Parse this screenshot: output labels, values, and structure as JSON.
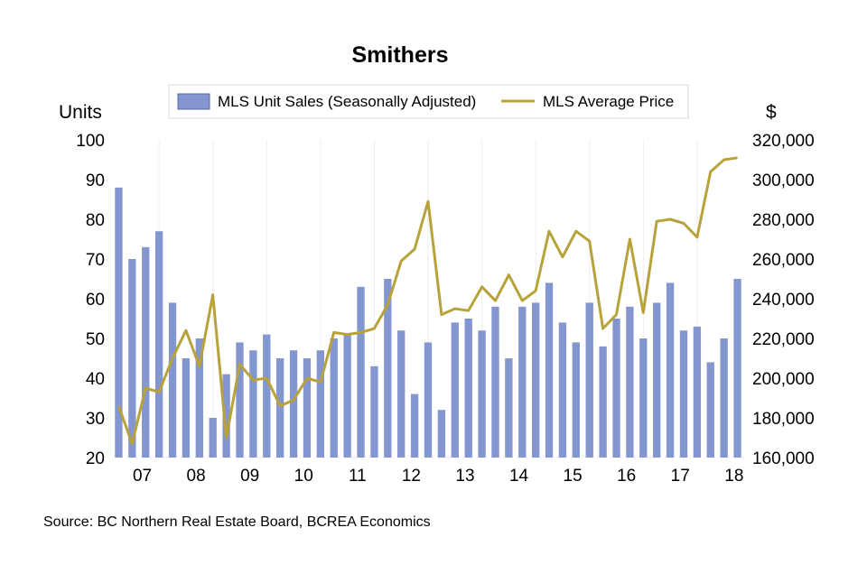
{
  "chart_data": {
    "type": "bar+line",
    "title": "Smithers",
    "y_left_label": "Units",
    "y_right_label": "$",
    "y_left_ticks": [
      "100",
      "90",
      "80",
      "70",
      "60",
      "50",
      "40",
      "30",
      "20"
    ],
    "y_right_ticks": [
      "320,000",
      "300,000",
      "280,000",
      "260,000",
      "240,000",
      "220,000",
      "200,000",
      "180,000",
      "160,000"
    ],
    "ylim_left": [
      20,
      100
    ],
    "ylim_right": [
      160000,
      320000
    ],
    "x_tick_labels": [
      "07",
      "08",
      "09",
      "10",
      "11",
      "12",
      "13",
      "14",
      "15",
      "16",
      "17",
      "18"
    ],
    "periods": 47,
    "first_tick_period": 2,
    "grid": "vertical",
    "legend_position": "top",
    "series": [
      {
        "name": "MLS Unit Sales (Seasonally Adjusted)",
        "type": "bar",
        "axis": "left",
        "color": "#8496CF",
        "values": [
          88,
          70,
          73,
          77,
          59,
          45,
          50,
          30,
          41,
          49,
          47,
          51,
          45,
          47,
          45,
          47,
          50,
          51,
          63,
          43,
          65,
          52,
          36,
          49,
          32,
          54,
          55,
          52,
          58,
          45,
          58,
          59,
          64,
          54,
          49,
          59,
          48,
          55,
          58,
          50,
          59,
          64,
          52,
          53,
          44,
          50,
          65
        ]
      },
      {
        "name": "MLS Average Price",
        "type": "line",
        "axis": "right",
        "color": "#B8A23A",
        "values": [
          186000,
          167000,
          195000,
          193000,
          210000,
          224000,
          206000,
          242000,
          170000,
          207000,
          199000,
          200000,
          186000,
          189000,
          200000,
          198000,
          223000,
          222000,
          223000,
          225000,
          237000,
          259000,
          265000,
          289000,
          232000,
          235000,
          234000,
          246000,
          239000,
          252000,
          239000,
          244000,
          274000,
          261000,
          274000,
          269000,
          225000,
          232000,
          270000,
          233000,
          279000,
          280000,
          278000,
          271000,
          304000,
          310000,
          311000
        ]
      }
    ]
  },
  "source": "Source:  BC Northern Real Estate Board, BCREA Economics"
}
